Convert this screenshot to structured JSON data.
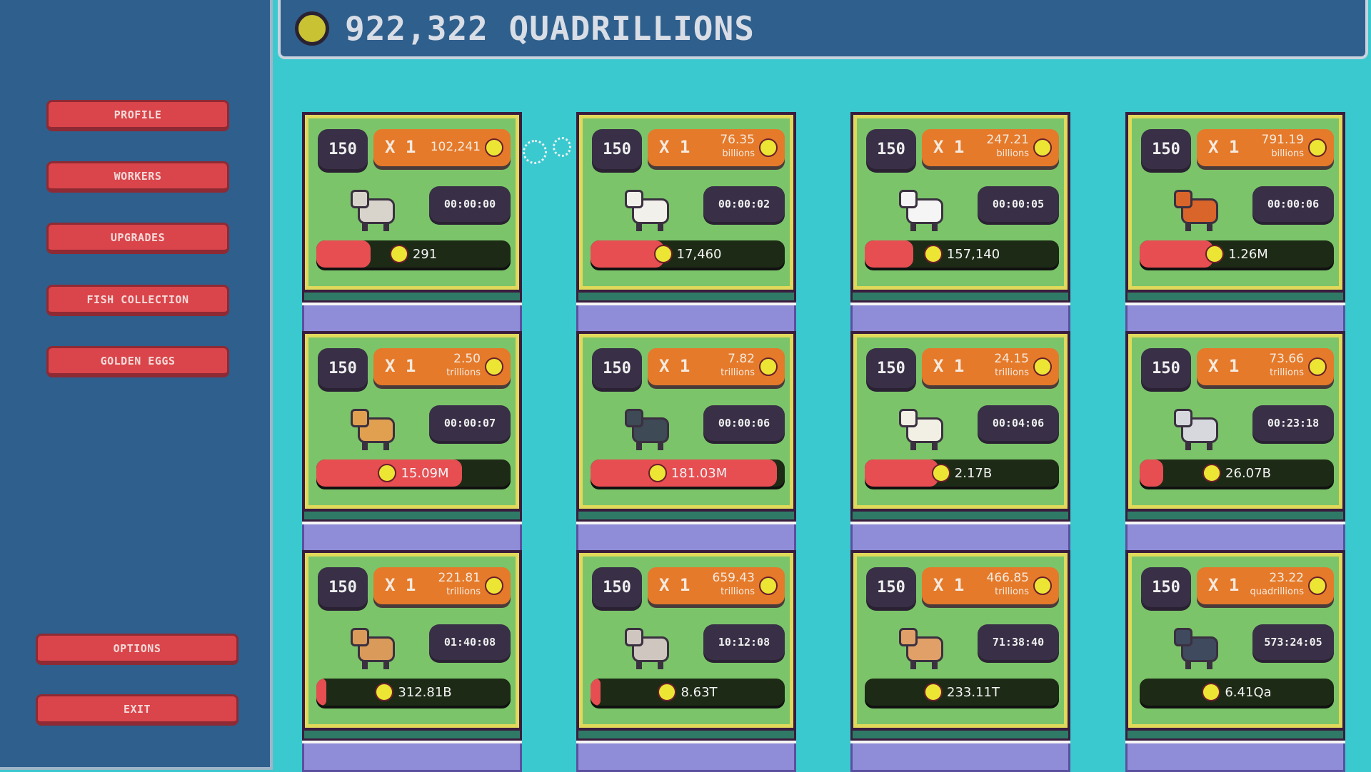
{
  "header": {
    "money": "922,322 QUADRILLIONS",
    "coin_icon": "coin-icon"
  },
  "sidebar": {
    "items": [
      {
        "id": "profile",
        "label": "PROFILE"
      },
      {
        "id": "workers",
        "label": "WORKERS"
      },
      {
        "id": "upgrades",
        "label": "UPGRADES"
      },
      {
        "id": "fish-collection",
        "label": "FISH COLLECTION"
      },
      {
        "id": "golden-eggs",
        "label": "GOLDEN EGGS"
      }
    ],
    "bottom": [
      {
        "id": "options",
        "label": "OPTIONS"
      },
      {
        "id": "exit",
        "label": "EXIT"
      }
    ]
  },
  "colors": {
    "background": "#3ac9cf",
    "sidebar": "#2f5f8c",
    "card": "#7cc46a",
    "multiplier": "#e57a2a",
    "progress": "#e64e52",
    "button": "#d9454a"
  },
  "animals": [
    {
      "animal": "rabbit",
      "level": "150",
      "multiplier": "X 1",
      "value": "102,241",
      "unit": "",
      "timer": "00:00:00",
      "earnings": "291",
      "progress": 0.28,
      "color": "#d8d4cc"
    },
    {
      "animal": "chicken",
      "level": "150",
      "multiplier": "X 1",
      "value": "76.35",
      "unit": "billions",
      "timer": "00:00:02",
      "earnings": "17,460",
      "progress": 0.38,
      "color": "#f2f0ea"
    },
    {
      "animal": "duck",
      "level": "150",
      "multiplier": "X 1",
      "value": "247.21",
      "unit": "billions",
      "timer": "00:00:05",
      "earnings": "157,140",
      "progress": 0.25,
      "color": "#f5f5f5"
    },
    {
      "animal": "fox",
      "level": "150",
      "multiplier": "X 1",
      "value": "791.19",
      "unit": "billions",
      "timer": "00:00:06",
      "earnings": "1.26M",
      "progress": 0.38,
      "color": "#d9652a"
    },
    {
      "animal": "dog",
      "level": "150",
      "multiplier": "X 1",
      "value": "2.50",
      "unit": "trillions",
      "timer": "00:00:07",
      "earnings": "15.09M",
      "progress": 0.75,
      "color": "#e0a050"
    },
    {
      "animal": "cat",
      "level": "150",
      "multiplier": "X 1",
      "value": "7.82",
      "unit": "trillions",
      "timer": "00:00:06",
      "earnings": "181.03M",
      "progress": 0.96,
      "color": "#3e4a55"
    },
    {
      "animal": "sheep",
      "level": "150",
      "multiplier": "X 1",
      "value": "24.15",
      "unit": "trillions",
      "timer": "00:04:06",
      "earnings": "2.17B",
      "progress": 0.38,
      "color": "#f2efe4"
    },
    {
      "animal": "cow",
      "level": "150",
      "multiplier": "X 1",
      "value": "73.66",
      "unit": "trillions",
      "timer": "00:23:18",
      "earnings": "26.07B",
      "progress": 0.12,
      "color": "#d6d8dd"
    },
    {
      "animal": "horse",
      "level": "150",
      "multiplier": "X 1",
      "value": "221.81",
      "unit": "trillions",
      "timer": "01:40:08",
      "earnings": "312.81B",
      "progress": 0.05,
      "color": "#d99a5a"
    },
    {
      "animal": "deer",
      "level": "150",
      "multiplier": "X 1",
      "value": "659.43",
      "unit": "trillions",
      "timer": "10:12:08",
      "earnings": "8.63T",
      "progress": 0.05,
      "color": "#cfc6c0"
    },
    {
      "animal": "llama",
      "level": "150",
      "multiplier": "X 1",
      "value": "466.85",
      "unit": "trillions",
      "timer": "71:38:40",
      "earnings": "233.11T",
      "progress": 0,
      "color": "#e0a068"
    },
    {
      "animal": "bear",
      "level": "150",
      "multiplier": "X 1",
      "value": "23.22",
      "unit": "quadrillions",
      "timer": "573:24:05",
      "earnings": "6.41Qa",
      "progress": 0,
      "color": "#3f4a5e"
    }
  ]
}
